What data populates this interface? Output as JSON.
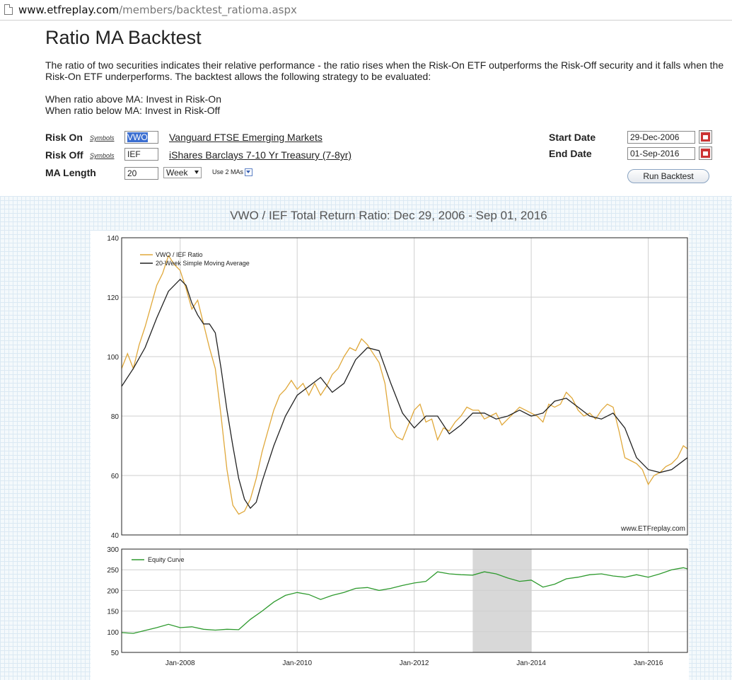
{
  "browser": {
    "url_host": "www.etfreplay.com",
    "url_path": "/members/backtest_ratioma.aspx"
  },
  "page": {
    "title": "Ratio MA Backtest",
    "description": "The ratio of two securities indicates their relative performance - the ratio rises when the Risk-On ETF outperforms the Risk-Off security and it falls when the Risk-On ETF underperforms.  The backtest allows the following strategy to be evaluated:",
    "strategy_line1": "When ratio above MA: Invest in Risk-On",
    "strategy_line2": "When ratio below MA: Invest in Risk-Off"
  },
  "form": {
    "risk_on_label": "Risk On",
    "risk_off_label": "Risk Off",
    "ma_length_label": "MA Length",
    "symbols_link": "Symbols",
    "risk_on_value": "VWO",
    "risk_off_value": "IEF",
    "risk_on_name": "Vanguard FTSE Emerging Markets",
    "risk_off_name": "iShares Barclays 7-10 Yr Treasury (7-8yr)",
    "ma_length_value": "20",
    "period_selected": "Week",
    "use_two_mas": "Use 2 MAs",
    "start_date_label": "Start Date",
    "end_date_label": "End Date",
    "start_date": "29-Dec-2006",
    "end_date": "01-Sep-2016",
    "run_button": "Run Backtest"
  },
  "chart_data": [
    {
      "type": "line",
      "title": "VWO / IEF Total Return Ratio: Dec 29, 2006 - Sep 01, 2016",
      "ylim": [
        40,
        140
      ],
      "y_ticks": [
        "140",
        "120",
        "100",
        "80",
        "60",
        "40"
      ],
      "watermark": "www.ETFreplay.com",
      "legend_position": "top-left",
      "series": [
        {
          "name": "VWO / IEF Ratio",
          "color": "#e0a83a",
          "x": [
            2007.0,
            2007.1,
            2007.2,
            2007.3,
            2007.4,
            2007.5,
            2007.6,
            2007.7,
            2007.8,
            2007.9,
            2008.0,
            2008.1,
            2008.2,
            2008.3,
            2008.4,
            2008.5,
            2008.6,
            2008.7,
            2008.8,
            2008.9,
            2009.0,
            2009.1,
            2009.2,
            2009.3,
            2009.4,
            2009.5,
            2009.6,
            2009.7,
            2009.8,
            2009.9,
            2010.0,
            2010.1,
            2010.2,
            2010.3,
            2010.4,
            2010.5,
            2010.6,
            2010.7,
            2010.8,
            2010.9,
            2011.0,
            2011.1,
            2011.2,
            2011.3,
            2011.4,
            2011.5,
            2011.6,
            2011.7,
            2011.8,
            2011.9,
            2012.0,
            2012.1,
            2012.2,
            2012.3,
            2012.4,
            2012.5,
            2012.6,
            2012.7,
            2012.8,
            2012.9,
            2013.0,
            2013.1,
            2013.2,
            2013.3,
            2013.4,
            2013.5,
            2013.6,
            2013.7,
            2013.8,
            2013.9,
            2014.0,
            2014.1,
            2014.2,
            2014.3,
            2014.4,
            2014.5,
            2014.6,
            2014.7,
            2014.8,
            2014.9,
            2015.0,
            2015.1,
            2015.2,
            2015.3,
            2015.4,
            2015.5,
            2015.6,
            2015.7,
            2015.8,
            2015.9,
            2016.0,
            2016.1,
            2016.2,
            2016.3,
            2016.4,
            2016.5,
            2016.6,
            2016.67
          ],
          "values": [
            96,
            101,
            96,
            104,
            110,
            117,
            124,
            128,
            134,
            131,
            129,
            123,
            116,
            119,
            111,
            103,
            96,
            80,
            62,
            50,
            47,
            48,
            52,
            59,
            68,
            75,
            82,
            87,
            89,
            92,
            89,
            91,
            87,
            91,
            87,
            90,
            94,
            96,
            100,
            103,
            102,
            106,
            104,
            101,
            98,
            91,
            76,
            73,
            72,
            77,
            82,
            84,
            78,
            79,
            72,
            76,
            75,
            78,
            80,
            83,
            82,
            82,
            79,
            80,
            81,
            77,
            79,
            81,
            83,
            82,
            81,
            80,
            78,
            84,
            83,
            84,
            88,
            86,
            82,
            80,
            81,
            79,
            82,
            84,
            83,
            75,
            66,
            65,
            64,
            62,
            57,
            60,
            61,
            63,
            64,
            66,
            70,
            69
          ]
        },
        {
          "name": "20-Week Simple Moving Average",
          "color": "#222222",
          "x": [
            2007.0,
            2007.2,
            2007.4,
            2007.6,
            2007.8,
            2008.0,
            2008.1,
            2008.2,
            2008.3,
            2008.4,
            2008.5,
            2008.6,
            2008.7,
            2008.8,
            2008.9,
            2009.0,
            2009.1,
            2009.2,
            2009.3,
            2009.4,
            2009.6,
            2009.8,
            2010.0,
            2010.2,
            2010.4,
            2010.6,
            2010.8,
            2011.0,
            2011.2,
            2011.4,
            2011.6,
            2011.8,
            2012.0,
            2012.2,
            2012.4,
            2012.6,
            2012.8,
            2013.0,
            2013.2,
            2013.4,
            2013.6,
            2013.8,
            2014.0,
            2014.2,
            2014.4,
            2014.6,
            2014.8,
            2015.0,
            2015.2,
            2015.4,
            2015.6,
            2015.8,
            2016.0,
            2016.2,
            2016.4,
            2016.67
          ],
          "values": [
            90,
            96,
            103,
            113,
            122,
            126,
            124,
            118,
            114,
            111,
            111,
            108,
            96,
            82,
            70,
            59,
            52,
            49,
            51,
            58,
            70,
            80,
            87,
            90,
            93,
            88,
            91,
            99,
            103,
            102,
            91,
            81,
            76,
            80,
            80,
            74,
            77,
            81,
            81,
            79,
            80,
            82,
            80,
            81,
            85,
            86,
            83,
            80,
            79,
            81,
            76,
            66,
            62,
            61,
            62,
            66
          ]
        }
      ]
    },
    {
      "type": "line",
      "ylim": [
        50,
        300
      ],
      "y_ticks": [
        "300",
        "250",
        "200",
        "150",
        "100",
        "50"
      ],
      "x_ticks": [
        "Jan-2008",
        "Jan-2010",
        "Jan-2012",
        "Jan-2014",
        "Jan-2016"
      ],
      "shaded_range": [
        2013.0,
        2014.0
      ],
      "legend_position": "top-left",
      "series": [
        {
          "name": "Equity Curve",
          "color": "#2e9a2e",
          "x": [
            2007.0,
            2007.2,
            2007.4,
            2007.6,
            2007.8,
            2008.0,
            2008.2,
            2008.4,
            2008.6,
            2008.8,
            2009.0,
            2009.2,
            2009.4,
            2009.6,
            2009.8,
            2010.0,
            2010.2,
            2010.4,
            2010.6,
            2010.8,
            2011.0,
            2011.2,
            2011.4,
            2011.6,
            2011.8,
            2012.0,
            2012.2,
            2012.4,
            2012.6,
            2012.8,
            2013.0,
            2013.2,
            2013.4,
            2013.6,
            2013.8,
            2014.0,
            2014.2,
            2014.4,
            2014.6,
            2014.8,
            2015.0,
            2015.2,
            2015.4,
            2015.6,
            2015.8,
            2016.0,
            2016.2,
            2016.4,
            2016.6,
            2016.67
          ],
          "values": [
            98,
            96,
            103,
            110,
            118,
            110,
            112,
            106,
            104,
            106,
            105,
            130,
            150,
            172,
            188,
            195,
            190,
            178,
            188,
            195,
            205,
            207,
            200,
            205,
            212,
            218,
            222,
            245,
            240,
            238,
            237,
            245,
            240,
            230,
            222,
            225,
            208,
            215,
            228,
            232,
            238,
            240,
            235,
            232,
            238,
            232,
            240,
            250,
            255,
            252
          ]
        }
      ]
    }
  ]
}
